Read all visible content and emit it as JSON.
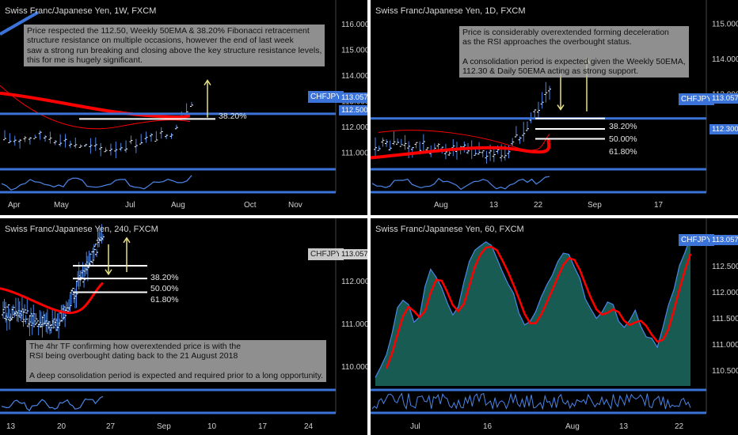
{
  "colors": {
    "background": "#000000",
    "separator": "#ffffff",
    "axis_text": "#d0d0d0",
    "level": "#3b73d8",
    "ema": "#ff0000",
    "fib": "#ffffff",
    "arrow": "#e8e088",
    "rsi": "#4a86e8",
    "area_fill": "#1f7a6e",
    "price_up": "#4a86e8"
  },
  "chart_data": [
    {
      "type": "bar",
      "title": "Swiss Franc/Japanese Yen, 1W, FXCM",
      "symbol_label": "CHFJPY",
      "last_price": "113.057",
      "level_price": "112.500",
      "fib_labels": [
        "38.20%"
      ],
      "x_ticks": [
        "Apr",
        "May",
        "Jul",
        "Aug",
        "Oct",
        "Nov"
      ],
      "y_ticks": [
        "116.000",
        "115.000",
        "114.000",
        "113.000",
        "112.000",
        "111.000"
      ],
      "ylim": [
        110.4,
        116.5
      ],
      "level": 112.5,
      "fib_levels": [
        112.3
      ],
      "note": "Price respected the 112.50, Weekly 50EMA & 38.20% Fibonacci retracement\nstructure resistance on multiple occasions, however the end of last week\nsaw a strong run breaking and closing above the key structure resistance levels,\nthis for me is hugely significant."
    },
    {
      "type": "bar",
      "title": "Swiss Franc/Japanese Yen, 1D, FXCM",
      "symbol_label": "CHFJPY",
      "last_price": "113.057",
      "level_price": "112.300",
      "fib_labels": [
        "38.20%",
        "50.00%",
        "61.80%"
      ],
      "x_ticks": [
        "Aug",
        "13",
        "22",
        "Sep",
        "17"
      ],
      "y_ticks": [
        "115.000",
        "114.000",
        "113.000",
        "112.000"
      ],
      "ylim": [
        110.9,
        115.35
      ],
      "level": 112.3,
      "fib_levels": [
        112.3,
        112.0,
        111.72
      ],
      "note": "Price is considerably overextended forming deceleration\nas the RSI approaches the overbought status.\n\nA consolidation period is expected given the Weekly 50EMA,\n112.30 & Daily 50EMA acting as strong support."
    },
    {
      "type": "bar",
      "title": "Swiss Franc/Japanese Yen, 240, FXCM",
      "symbol_label": "CHFJPY",
      "last_price": "113.057",
      "fib_labels": [
        "38.20%",
        "50.00%",
        "61.80%"
      ],
      "x_ticks": [
        "13",
        "20",
        "27",
        "Sep",
        "10",
        "17",
        "24"
      ],
      "y_ticks": [
        "112.000",
        "111.000",
        "110.000"
      ],
      "ylim": [
        109.5,
        113.2
      ],
      "fib_levels": [
        112.35,
        112.05,
        111.73
      ],
      "note": "The 4hr TF confirming how overextended price is with the\nRSI being overbought dating back to the 21 August 2018\n\nA deep consolidation period is expected and required prior to a long opportunity."
    },
    {
      "type": "area",
      "title": "Swiss Franc/Japanese Yen, 60, FXCM",
      "symbol_label": "CHFJPY",
      "last_price": "113.057",
      "x_ticks": [
        "Jul",
        "16",
        "Aug",
        "13",
        "22"
      ],
      "y_ticks": [
        "112.500",
        "112.000",
        "111.500",
        "111.000",
        "110.500"
      ],
      "ylim": [
        110.2,
        113.2
      ],
      "series": [
        {
          "values": [
            110.35,
            110.55,
            110.85,
            111.2,
            111.65,
            111.9,
            111.75,
            111.4,
            111.55,
            112.1,
            112.45,
            112.3,
            112.05,
            111.8,
            111.55,
            111.7,
            112.2,
            112.6,
            112.8,
            112.9,
            113.0,
            112.85,
            112.7,
            112.4,
            112.2,
            111.95,
            111.6,
            111.35,
            111.4,
            111.6,
            111.85,
            112.1,
            112.3,
            112.6,
            112.8,
            112.7,
            112.5,
            112.2,
            111.9,
            111.7,
            111.55,
            111.6,
            111.8,
            111.75,
            111.45,
            111.3,
            111.5,
            111.6,
            111.4,
            111.2,
            111.1,
            111.0,
            111.3,
            111.7,
            112.1,
            112.5,
            112.8,
            113.05
          ]
        }
      ]
    }
  ]
}
